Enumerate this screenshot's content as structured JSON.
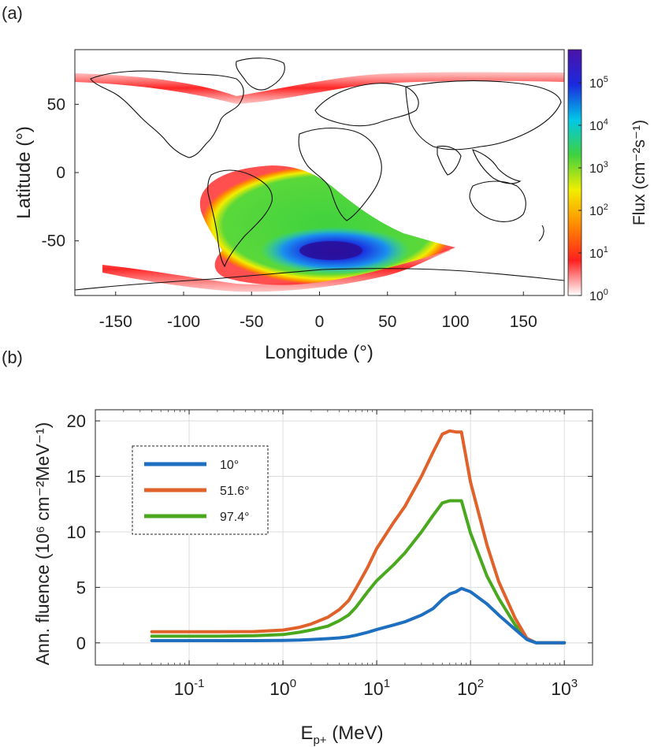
{
  "panel_a": {
    "label": "(a)",
    "xlabel": "Longitude (°)",
    "ylabel": "Latitude (°)",
    "colorbar_label": "Flux (cm⁻²s⁻¹)",
    "colorbar_ticks": [
      {
        "base": "10",
        "exp": "0",
        "value": 1
      },
      {
        "base": "10",
        "exp": "1",
        "value": 10
      },
      {
        "base": "10",
        "exp": "2",
        "value": 100
      },
      {
        "base": "10",
        "exp": "3",
        "value": 1000
      },
      {
        "base": "10",
        "exp": "4",
        "value": 10000
      },
      {
        "base": "10",
        "exp": "5",
        "value": 100000
      }
    ],
    "colormap": [
      "#ffffff",
      "#ff1f1f",
      "#ff8a00",
      "#f2ee00",
      "#3fd23f",
      "#00c8e6",
      "#1a2adf",
      "#4b12a8"
    ]
  },
  "panel_b": {
    "label": "(b)",
    "xlabel_main": "E",
    "xlabel_sub": "p+",
    "xlabel_unit": " (MeV)",
    "ylabel": "Ann. fluence (10⁶ cm⁻²MeV⁻¹)"
  },
  "chart_data": [
    {
      "type": "heatmap",
      "title": "",
      "xlabel": "Longitude (°)",
      "ylabel": "Latitude (°)",
      "xlim": [
        -180,
        180
      ],
      "ylim": [
        -90,
        90
      ],
      "xticks": [
        -150,
        -100,
        -50,
        0,
        50,
        100,
        150
      ],
      "yticks": [
        -50,
        0,
        50
      ],
      "color_scale": "log",
      "color_range": [
        1,
        600000
      ],
      "colorbar_label": "Flux (cm^-2 s^-1)",
      "features": [
        {
          "name": "South Atlantic Anomaly",
          "center_lon": 10,
          "center_lat": -55,
          "peak_flux": 300000
        },
        {
          "name": "Northern high-latitude band",
          "lat_range": [
            40,
            75
          ],
          "peak_flux": 30
        },
        {
          "name": "Southern high-latitude band",
          "lat_range": [
            -85,
            -55
          ],
          "peak_flux": 30
        }
      ]
    },
    {
      "type": "line",
      "title": "",
      "xlabel": "E_p+ (MeV)",
      "ylabel": "Ann. fluence (10^6 cm^-2 MeV^-1)",
      "xscale": "log",
      "xlim": [
        0.01,
        2000
      ],
      "ylim": [
        -2,
        21
      ],
      "xticks": [
        0.1,
        1,
        10,
        100,
        1000
      ],
      "yticks": [
        0,
        5,
        10,
        15,
        20
      ],
      "grid": true,
      "legend": "upper-left",
      "x": [
        0.04,
        0.1,
        0.2,
        0.5,
        1,
        1.5,
        2,
        3,
        4,
        5,
        6,
        8,
        10,
        15,
        20,
        30,
        40,
        50,
        60,
        70,
        80,
        100,
        150,
        200,
        300,
        400,
        500,
        700,
        1000
      ],
      "series": [
        {
          "name": "10°",
          "color": "#1f6fc1",
          "values": [
            0.2,
            0.2,
            0.2,
            0.2,
            0.22,
            0.25,
            0.3,
            0.38,
            0.45,
            0.55,
            0.68,
            0.95,
            1.2,
            1.6,
            1.9,
            2.5,
            3.1,
            3.9,
            4.4,
            4.6,
            4.9,
            4.6,
            3.5,
            2.5,
            1.2,
            0.3,
            0.0,
            0.0,
            0.0
          ]
        },
        {
          "name": "51.6°",
          "color": "#e0612a",
          "values": [
            1.0,
            1.0,
            1.0,
            1.02,
            1.15,
            1.4,
            1.7,
            2.3,
            3.0,
            3.8,
            4.9,
            6.8,
            8.5,
            10.8,
            12.3,
            15.0,
            17.2,
            18.8,
            19.1,
            19.0,
            19.0,
            14.5,
            8.8,
            5.5,
            2.2,
            0.4,
            0.0,
            0.0,
            0.0
          ]
        },
        {
          "name": "97.4°",
          "color": "#4aa81e",
          "values": [
            0.6,
            0.6,
            0.6,
            0.65,
            0.75,
            0.95,
            1.15,
            1.5,
            2.0,
            2.5,
            3.2,
            4.6,
            5.6,
            7.0,
            8.1,
            10.0,
            11.5,
            12.6,
            12.8,
            12.8,
            12.8,
            9.9,
            6.0,
            4.0,
            1.6,
            0.3,
            0.0,
            0.0,
            0.0
          ]
        }
      ]
    }
  ]
}
